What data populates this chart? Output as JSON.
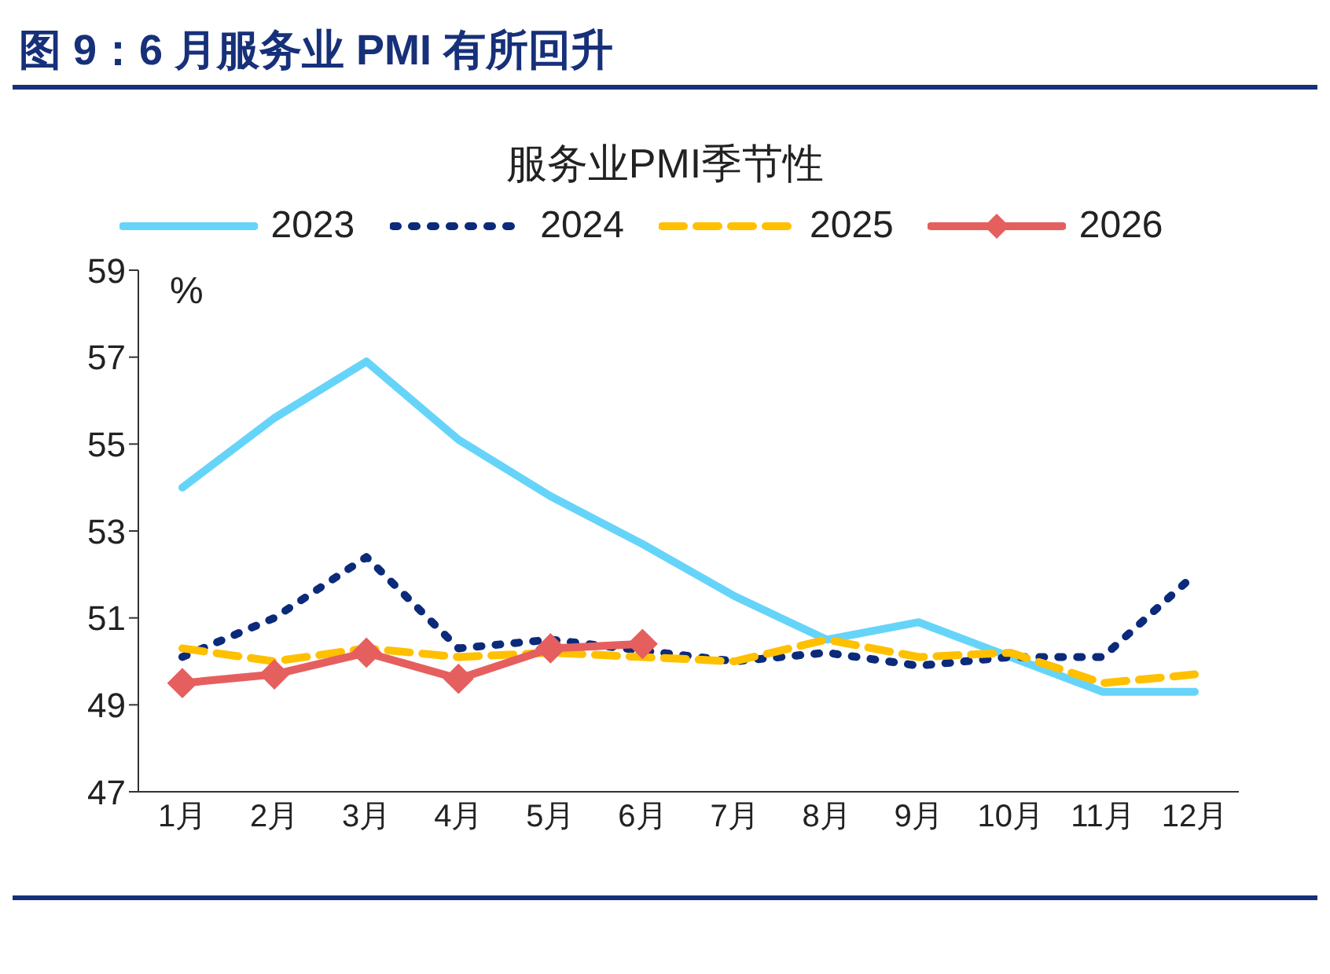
{
  "chart_data": {
    "type": "line",
    "title": "图 9：6 月服务业 PMI 有所回升",
    "subtitle": "服务业PMI季节性",
    "ylabel": "%",
    "categories": [
      "1月",
      "2月",
      "3月",
      "4月",
      "5月",
      "6月",
      "7月",
      "8月",
      "9月",
      "10月",
      "11月",
      "12月"
    ],
    "series": [
      {
        "name": "2023",
        "color": "#66d4f9",
        "line_style": "solid",
        "marker": "none",
        "values": [
          54.0,
          55.6,
          56.9,
          55.1,
          53.8,
          52.7,
          51.5,
          50.5,
          50.9,
          50.1,
          49.3,
          49.3
        ]
      },
      {
        "name": "2024",
        "color": "#0b2a7a",
        "line_style": "dotted",
        "marker": "none",
        "values": [
          50.1,
          51.0,
          52.4,
          50.3,
          50.5,
          null,
          50.0,
          50.2,
          49.9,
          50.1,
          50.1,
          52.0
        ]
      },
      {
        "name": "2025",
        "color": "#ffc000",
        "line_style": "dashed",
        "marker": "none",
        "values": [
          50.3,
          50.0,
          50.3,
          50.1,
          50.2,
          50.1,
          50.0,
          50.5,
          50.1,
          50.2,
          49.5,
          49.7
        ]
      },
      {
        "name": "2026",
        "color": "#e55f5f",
        "line_style": "solid",
        "marker": "diamond",
        "values": [
          49.5,
          49.7,
          50.2,
          49.6,
          50.3,
          50.4,
          null,
          null,
          null,
          null,
          null,
          null
        ]
      }
    ],
    "ylim": [
      47,
      59
    ],
    "yticks": [
      47,
      49,
      51,
      53,
      55,
      57,
      59
    ],
    "grid": false,
    "legend": "top"
  }
}
